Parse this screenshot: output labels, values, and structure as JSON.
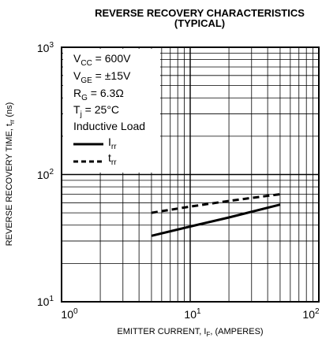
{
  "chart_data": {
    "type": "line",
    "title": "REVERSE RECOVERY CHARACTERISTICS",
    "subtitle": "(TYPICAL)",
    "xlabel": "EMITTER CURRENT, I",
    "xlabel_sub": "F",
    "xlabel_tail": ", (AMPERES)",
    "ylabel": "REVERSE RECOVERY TIME, t",
    "ylabel_sub": "rr",
    "ylabel_tail": " (ns)",
    "x_scale": "log",
    "y_scale": "log",
    "xlim": [
      1,
      100
    ],
    "ylim": [
      10,
      1000
    ],
    "x_ticks": [
      {
        "base": "10",
        "exp": "0"
      },
      {
        "base": "10",
        "exp": "1"
      },
      {
        "base": "10",
        "exp": "2"
      }
    ],
    "y_ticks": [
      {
        "base": "10",
        "exp": "1"
      },
      {
        "base": "10",
        "exp": "2"
      },
      {
        "base": "10",
        "exp": "3"
      }
    ],
    "grid": true,
    "conditions": {
      "vcc": {
        "main": "V",
        "sub": "CC",
        "tail": " = 600V"
      },
      "vge": {
        "main": "V",
        "sub": "GE",
        "tail": " = ±15V"
      },
      "rg": {
        "main": "R",
        "sub": "G",
        "tail": " = 6.3Ω"
      },
      "tj": {
        "main": "T",
        "sub": "j",
        "tail": " = 25°C"
      },
      "load": "Inductive Load"
    },
    "series": [
      {
        "name_main": "I",
        "name_sub": "rr",
        "style": "solid",
        "x": [
          5,
          10,
          20,
          50
        ],
        "y": [
          33,
          39,
          46,
          58
        ]
      },
      {
        "name_main": "t",
        "name_sub": "rr",
        "style": "dashed",
        "x": [
          5,
          10,
          20,
          50
        ],
        "y": [
          50,
          56,
          62,
          70
        ]
      }
    ]
  }
}
